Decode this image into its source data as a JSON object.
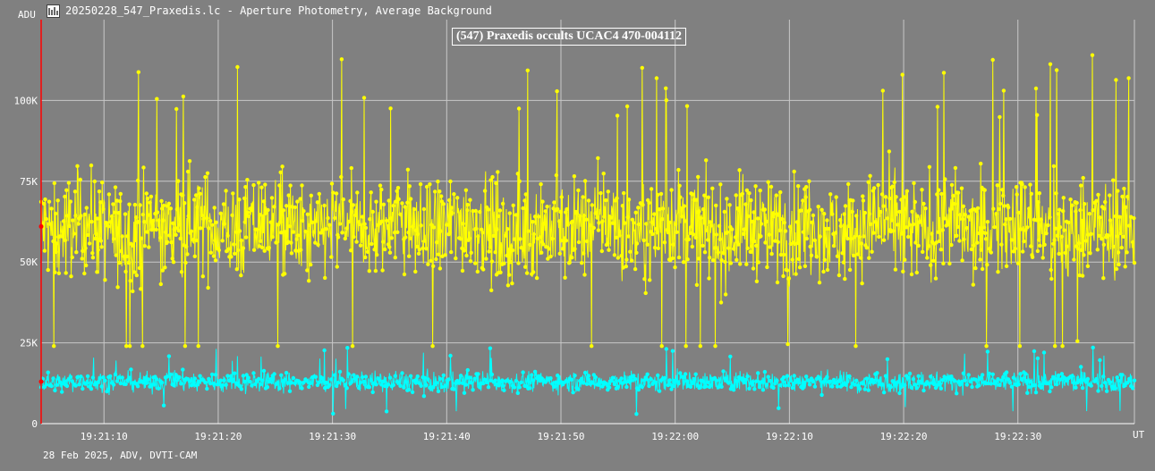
{
  "window": {
    "title": "20250228_547_Praxedis.lc - Aperture Photometry, Average Background",
    "icon": "light-curve-icon"
  },
  "footer": {
    "text": "28 Feb 2025, ADV, DVTI-CAM"
  },
  "colors": {
    "background": "#808080",
    "grid": "#c8c8c8",
    "target_series": "#ffff00",
    "comparison_series": "#00ffff",
    "cursor_line": "#ff0000"
  },
  "chart_data": {
    "type": "line",
    "title": "(547) Praxedis occults UCAC4 470-004112",
    "ylabel": "ADU",
    "xlabel": "UT",
    "ylim": [
      0,
      125000
    ],
    "xlim": [
      "19:21:04.5",
      "19:22:40.2"
    ],
    "y_ticks": [
      {
        "value": 0,
        "label": "0"
      },
      {
        "value": 25000,
        "label": "25K"
      },
      {
        "value": 50000,
        "label": "50K"
      },
      {
        "value": 75000,
        "label": "75K"
      },
      {
        "value": 100000,
        "label": "100K"
      }
    ],
    "x_ticks": [
      {
        "value": "19:21:10",
        "label": "19:21:10"
      },
      {
        "value": "19:21:20",
        "label": "19:21:20"
      },
      {
        "value": "19:21:30",
        "label": "19:21:30"
      },
      {
        "value": "19:21:40",
        "label": "19:21:40"
      },
      {
        "value": "19:21:50",
        "label": "19:21:50"
      },
      {
        "value": "19:22:00",
        "label": "19:22:00"
      },
      {
        "value": "19:22:10",
        "label": "19:22:10"
      },
      {
        "value": "19:22:20",
        "label": "19:22:20"
      },
      {
        "value": "19:22:30",
        "label": "19:22:30"
      }
    ],
    "grid": true,
    "cursor": {
      "time": "19:21:04.5",
      "markers": [
        61000,
        13000
      ]
    },
    "series": [
      {
        "color": "#ffff00",
        "x": [
          "19:21:04.5",
          "19:21:06",
          "19:21:08",
          "19:21:10",
          "19:21:12",
          "19:21:14",
          "19:21:16",
          "19:21:18",
          "19:21:20",
          "19:21:22",
          "19:21:24",
          "19:21:26",
          "19:21:28",
          "19:21:30",
          "19:21:32",
          "19:21:34",
          "19:21:36",
          "19:21:38",
          "19:21:40",
          "19:21:42",
          "19:21:44",
          "19:21:46",
          "19:21:48",
          "19:21:50",
          "19:21:52",
          "19:21:54",
          "19:21:56",
          "19:21:58",
          "19:22:00",
          "19:22:02",
          "19:22:04",
          "19:22:06",
          "19:22:08",
          "19:22:10",
          "19:22:12",
          "19:22:14",
          "19:22:16",
          "19:22:18",
          "19:22:20",
          "19:22:22",
          "19:22:24",
          "19:22:26",
          "19:22:28",
          "19:22:30",
          "19:22:32",
          "19:22:34",
          "19:22:36",
          "19:22:38",
          "19:22:40"
        ],
        "y": [
          61000,
          58000,
          63000,
          60000,
          57000,
          62000,
          59000,
          64000,
          60000,
          58000,
          63000,
          61000,
          57000,
          62000,
          60000,
          59000,
          64000,
          58000,
          61000,
          63000,
          60000,
          57000,
          62000,
          59000,
          61000,
          64000,
          58000,
          60000,
          63000,
          61000,
          57000,
          62000,
          60000,
          59000,
          63000,
          58000,
          61000,
          62000,
          60000,
          59000,
          64000,
          58000,
          61000,
          63000,
          60000,
          57000,
          62000,
          60000,
          61000
        ],
        "y_range_min": 24000,
        "y_range_max": 115000
      },
      {
        "color": "#00ffff",
        "x": [
          "19:21:04.5",
          "19:21:06",
          "19:21:08",
          "19:21:10",
          "19:21:12",
          "19:21:14",
          "19:21:16",
          "19:21:18",
          "19:21:20",
          "19:21:22",
          "19:21:24",
          "19:21:26",
          "19:21:28",
          "19:21:30",
          "19:21:32",
          "19:21:34",
          "19:21:36",
          "19:21:38",
          "19:21:40",
          "19:21:42",
          "19:21:44",
          "19:21:46",
          "19:21:48",
          "19:21:50",
          "19:21:52",
          "19:21:54",
          "19:21:56",
          "19:21:58",
          "19:22:00",
          "19:22:02",
          "19:22:04",
          "19:22:06",
          "19:22:08",
          "19:22:10",
          "19:22:12",
          "19:22:14",
          "19:22:16",
          "19:22:18",
          "19:22:20",
          "19:22:22",
          "19:22:24",
          "19:22:26",
          "19:22:28",
          "19:22:30",
          "19:22:32",
          "19:22:34",
          "19:22:36",
          "19:22:38",
          "19:22:40"
        ],
        "y": [
          13000,
          12500,
          13500,
          12800,
          13200,
          12600,
          13400,
          12900,
          13100,
          12700,
          13300,
          12800,
          13000,
          12600,
          13200,
          12900,
          13100,
          12700,
          12500,
          13300,
          12800,
          13000,
          13400,
          12700,
          13100,
          12900,
          13200,
          12600,
          13300,
          12800,
          13000,
          13500,
          12700,
          13100,
          12900,
          13200,
          12600,
          13000,
          12800,
          13300,
          12900,
          13100,
          12700,
          13200,
          12800,
          13000,
          13400,
          12600,
          12900
        ],
        "y_range_min": 3000,
        "y_range_max": 24000
      }
    ]
  }
}
